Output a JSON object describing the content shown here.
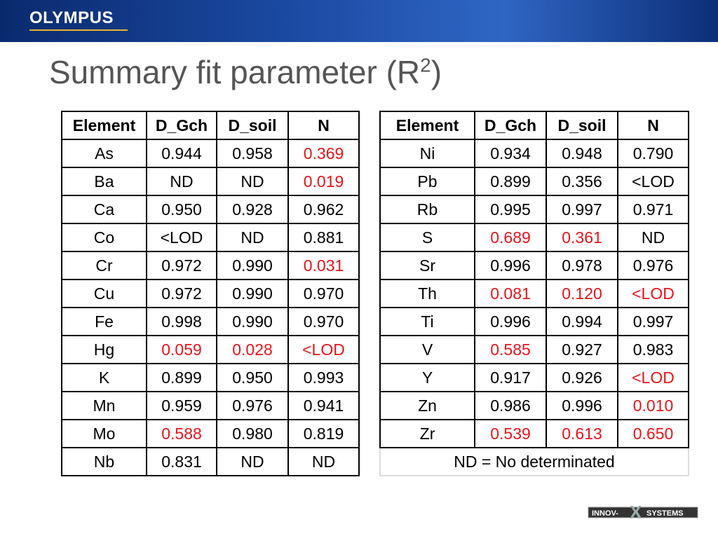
{
  "header": {
    "brand": "OLYMPUS"
  },
  "title": {
    "main": "Summary fit parameter (R",
    "sup": "2",
    "end": ")"
  },
  "tables": [
    {
      "header": [
        "Element",
        "D_Gch",
        "D_soil",
        "N"
      ],
      "rows": [
        [
          "As",
          "0.944",
          "0.958",
          {
            "text": "0.369",
            "color": "#e8141b"
          }
        ],
        [
          "Ba",
          "ND",
          "ND",
          {
            "text": "0.019",
            "color": "#e8141b"
          }
        ],
        [
          "Ca",
          "0.950",
          "0.928",
          "0.962"
        ],
        [
          "Co",
          "<LOD",
          "ND",
          "0.881"
        ],
        [
          "Cr",
          "0.972",
          "0.990",
          {
            "text": "0.031",
            "color": "#e8141b"
          }
        ],
        [
          "Cu",
          "0.972",
          "0.990",
          "0.970"
        ],
        [
          "Fe",
          "0.998",
          "0.990",
          "0.970"
        ],
        [
          "Hg",
          {
            "text": "0.059",
            "color": "#e8141b"
          },
          {
            "text": "0.028",
            "color": "#e8141b"
          },
          {
            "text": "<LOD",
            "color": "#e8141b"
          }
        ],
        [
          "K",
          "0.899",
          "0.950",
          "0.993"
        ],
        [
          "Mn",
          "0.959",
          "0.976",
          "0.941"
        ],
        [
          "Mo",
          {
            "text": "0.588",
            "color": "#e8141b"
          },
          "0.980",
          "0.819"
        ],
        [
          "Nb",
          "0.831",
          "ND",
          "ND"
        ]
      ]
    },
    {
      "header": [
        "Element",
        "D_Gch",
        "D_soil",
        "N"
      ],
      "rows": [
        [
          "Ni",
          "0.934",
          "0.948",
          "0.790"
        ],
        [
          "Pb",
          "0.899",
          "0.356",
          "<LOD"
        ],
        [
          "Rb",
          "0.995",
          "0.997",
          "0.971"
        ],
        [
          "S",
          {
            "text": "0.689",
            "color": "#e8141b"
          },
          {
            "text": "0.361",
            "color": "#e8141b"
          },
          "ND"
        ],
        [
          "Sr",
          "0.996",
          "0.978",
          "0.976"
        ],
        [
          "Th",
          {
            "text": "0.081",
            "color": "#e8141b"
          },
          {
            "text": "0.120",
            "color": "#e8141b"
          },
          {
            "text": "<LOD",
            "color": "#e8141b"
          }
        ],
        [
          "Ti",
          "0.996",
          "0.994",
          "0.997"
        ],
        [
          "V",
          {
            "text": "0.585",
            "color": "#e8141b"
          },
          "0.927",
          "0.983"
        ],
        [
          "Y",
          "0.917",
          "0.926",
          {
            "text": "<LOD",
            "color": "#e8141b"
          }
        ],
        [
          "Zn",
          "0.986",
          "0.996",
          {
            "text": "0.010",
            "color": "#e8141b"
          }
        ],
        [
          "Zr",
          {
            "text": "0.539",
            "color": "#e8141b"
          },
          {
            "text": "0.613",
            "color": "#e8141b"
          },
          {
            "text": "0.650",
            "color": "#e8141b"
          }
        ]
      ],
      "footnote": "ND = No determinated"
    }
  ],
  "footer": {
    "logo_left": "INNOV-",
    "logo_mark": "X",
    "logo_right": "SYSTEMS"
  }
}
